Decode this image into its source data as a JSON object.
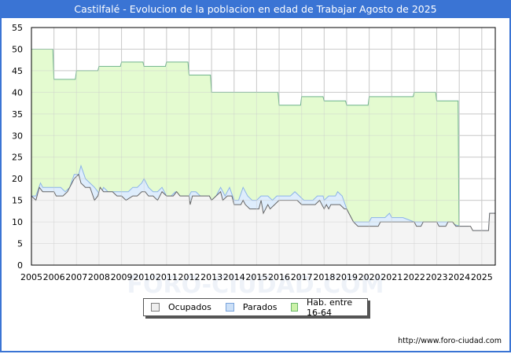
{
  "title": "Castilfalé - Evolucion de la poblacion en edad de Trabajar Agosto de 2025",
  "source": "http://www.foro-ciudad.com",
  "watermark": "FORO-CIUDAD.COM",
  "legend": [
    {
      "label": "Ocupados",
      "color": "#f2f2f2",
      "border": "#808080"
    },
    {
      "label": "Parados",
      "color": "#cce0f7",
      "border": "#7aa4dc"
    },
    {
      "label": "Hab. entre 16-64",
      "color": "#ccf2a8",
      "border": "#6db86d"
    }
  ],
  "colors": {
    "title_bar": "#3a74d4",
    "hab_fill": "#e4fbd0",
    "hab_line": "#6db38a",
    "parados_fill": "#deedfc",
    "parados_line": "#8cb4e8",
    "ocupados_fill": "#f4f4f4",
    "ocupados_line": "#666666",
    "grid": "#cccccc"
  },
  "chart_data": {
    "type": "area",
    "title": "Castilfalé - Evolucion de la poblacion en edad de Trabajar Agosto de 2025",
    "xlabel": "",
    "ylabel": "",
    "ylim": [
      0,
      55
    ],
    "xlim": [
      2005,
      2025.6
    ],
    "grid": true,
    "legend_position": "bottom",
    "x_ticks": [
      "2005",
      "2006",
      "2007",
      "2008",
      "2009",
      "2010",
      "2011",
      "2012",
      "2013",
      "2014",
      "2015",
      "2016",
      "2017",
      "2018",
      "2019",
      "2020",
      "2021",
      "2022",
      "2023",
      "2024",
      "2025"
    ],
    "y_ticks": [
      0,
      5,
      10,
      15,
      20,
      25,
      30,
      35,
      40,
      45,
      50,
      55
    ],
    "series": [
      {
        "name": "Hab. entre 16-64",
        "points": [
          [
            2005.0,
            50
          ],
          [
            2005.95,
            50
          ],
          [
            2006.0,
            43
          ],
          [
            2006.95,
            43
          ],
          [
            2007.0,
            45
          ],
          [
            2007.95,
            45
          ],
          [
            2008.0,
            46
          ],
          [
            2008.95,
            46
          ],
          [
            2009.0,
            47
          ],
          [
            2009.95,
            47
          ],
          [
            2010.0,
            46
          ],
          [
            2010.95,
            46
          ],
          [
            2011.0,
            47
          ],
          [
            2011.95,
            47
          ],
          [
            2012.0,
            44
          ],
          [
            2012.95,
            44
          ],
          [
            2013.0,
            40
          ],
          [
            2015.95,
            40
          ],
          [
            2016.0,
            37
          ],
          [
            2016.95,
            37
          ],
          [
            2017.0,
            39
          ],
          [
            2017.95,
            39
          ],
          [
            2018.0,
            38
          ],
          [
            2018.95,
            38
          ],
          [
            2019.0,
            37
          ],
          [
            2019.95,
            37
          ],
          [
            2020.0,
            39
          ],
          [
            2021.95,
            39
          ],
          [
            2022.0,
            40
          ],
          [
            2022.95,
            40
          ],
          [
            2023.0,
            38
          ],
          [
            2023.95,
            38
          ],
          [
            2024.0,
            0
          ]
        ]
      },
      {
        "name": "Parados",
        "points": [
          [
            2005.0,
            16
          ],
          [
            2005.2,
            16
          ],
          [
            2005.4,
            19
          ],
          [
            2005.5,
            18
          ],
          [
            2006.0,
            18
          ],
          [
            2006.3,
            18
          ],
          [
            2006.5,
            17
          ],
          [
            2006.7,
            18
          ],
          [
            2006.9,
            21
          ],
          [
            2007.1,
            21
          ],
          [
            2007.2,
            23
          ],
          [
            2007.4,
            20
          ],
          [
            2007.6,
            19
          ],
          [
            2007.8,
            18
          ],
          [
            2007.95,
            17
          ],
          [
            2008.05,
            16
          ],
          [
            2008.2,
            18
          ],
          [
            2008.4,
            17
          ],
          [
            2008.8,
            17
          ],
          [
            2009.0,
            17
          ],
          [
            2009.3,
            17
          ],
          [
            2009.5,
            18
          ],
          [
            2009.7,
            18
          ],
          [
            2009.9,
            19
          ],
          [
            2010.0,
            20
          ],
          [
            2010.2,
            18
          ],
          [
            2010.4,
            17
          ],
          [
            2010.6,
            17
          ],
          [
            2010.8,
            18
          ],
          [
            2011.0,
            16
          ],
          [
            2011.2,
            16
          ],
          [
            2011.4,
            17
          ],
          [
            2011.6,
            16
          ],
          [
            2012.0,
            16
          ],
          [
            2012.1,
            17
          ],
          [
            2012.3,
            17
          ],
          [
            2012.5,
            16
          ],
          [
            2012.9,
            16
          ],
          [
            2013.0,
            15
          ],
          [
            2013.2,
            16
          ],
          [
            2013.4,
            18
          ],
          [
            2013.6,
            16
          ],
          [
            2013.8,
            18
          ],
          [
            2014.0,
            15
          ],
          [
            2014.2,
            15
          ],
          [
            2014.4,
            18
          ],
          [
            2014.6,
            16
          ],
          [
            2014.8,
            15
          ],
          [
            2015.0,
            15
          ],
          [
            2015.2,
            16
          ],
          [
            2015.5,
            16
          ],
          [
            2015.7,
            15
          ],
          [
            2015.9,
            16
          ],
          [
            2016.0,
            16
          ],
          [
            2016.5,
            16
          ],
          [
            2016.7,
            17
          ],
          [
            2016.9,
            16
          ],
          [
            2017.1,
            15
          ],
          [
            2017.5,
            15
          ],
          [
            2017.7,
            16
          ],
          [
            2017.95,
            16
          ],
          [
            2018.0,
            15
          ],
          [
            2018.2,
            16
          ],
          [
            2018.5,
            16
          ],
          [
            2018.6,
            17
          ],
          [
            2018.8,
            16
          ],
          [
            2019.0,
            13
          ],
          [
            2019.1,
            12
          ],
          [
            2019.3,
            10
          ],
          [
            2019.6,
            10
          ],
          [
            2020.0,
            10
          ],
          [
            2020.1,
            11
          ],
          [
            2020.5,
            11
          ],
          [
            2020.7,
            11
          ],
          [
            2020.9,
            12
          ],
          [
            2021.0,
            11
          ],
          [
            2021.3,
            11
          ],
          [
            2021.5,
            11
          ],
          [
            2022.0,
            10
          ],
          [
            2022.5,
            10
          ],
          [
            2023.0,
            10
          ],
          [
            2023.5,
            10
          ],
          [
            2024.0,
            9
          ],
          [
            2024.4,
            9
          ],
          [
            2024.5,
            8
          ],
          [
            2025.3,
            8
          ],
          [
            2025.35,
            12
          ],
          [
            2025.6,
            12
          ]
        ]
      },
      {
        "name": "Ocupados",
        "points": [
          [
            2005.0,
            16
          ],
          [
            2005.2,
            15
          ],
          [
            2005.35,
            18
          ],
          [
            2005.5,
            17
          ],
          [
            2006.0,
            17
          ],
          [
            2006.1,
            16
          ],
          [
            2006.4,
            16
          ],
          [
            2006.6,
            17
          ],
          [
            2006.9,
            20
          ],
          [
            2007.1,
            21
          ],
          [
            2007.2,
            19
          ],
          [
            2007.4,
            18
          ],
          [
            2007.6,
            18
          ],
          [
            2007.8,
            15
          ],
          [
            2007.95,
            16
          ],
          [
            2008.05,
            18
          ],
          [
            2008.2,
            17
          ],
          [
            2008.6,
            17
          ],
          [
            2008.8,
            16
          ],
          [
            2009.0,
            16
          ],
          [
            2009.2,
            15
          ],
          [
            2009.5,
            16
          ],
          [
            2009.7,
            16
          ],
          [
            2009.9,
            17
          ],
          [
            2010.05,
            17
          ],
          [
            2010.2,
            16
          ],
          [
            2010.4,
            16
          ],
          [
            2010.6,
            15
          ],
          [
            2010.8,
            17
          ],
          [
            2011.0,
            16
          ],
          [
            2011.3,
            16
          ],
          [
            2011.45,
            17
          ],
          [
            2011.6,
            16
          ],
          [
            2012.0,
            16
          ],
          [
            2012.05,
            14
          ],
          [
            2012.15,
            16
          ],
          [
            2012.6,
            16
          ],
          [
            2012.9,
            16
          ],
          [
            2013.0,
            15
          ],
          [
            2013.4,
            17
          ],
          [
            2013.5,
            15
          ],
          [
            2013.7,
            16
          ],
          [
            2013.9,
            16
          ],
          [
            2014.0,
            14
          ],
          [
            2014.3,
            14
          ],
          [
            2014.4,
            15
          ],
          [
            2014.5,
            14
          ],
          [
            2014.7,
            13
          ],
          [
            2015.1,
            13
          ],
          [
            2015.2,
            15
          ],
          [
            2015.3,
            12
          ],
          [
            2015.5,
            14
          ],
          [
            2015.6,
            13
          ],
          [
            2015.8,
            14
          ],
          [
            2016.0,
            15
          ],
          [
            2016.5,
            15
          ],
          [
            2016.8,
            15
          ],
          [
            2017.0,
            14
          ],
          [
            2017.3,
            14
          ],
          [
            2017.6,
            14
          ],
          [
            2017.8,
            15
          ],
          [
            2018.0,
            13
          ],
          [
            2018.1,
            14
          ],
          [
            2018.2,
            13
          ],
          [
            2018.3,
            14
          ],
          [
            2018.5,
            14
          ],
          [
            2018.7,
            14
          ],
          [
            2018.9,
            13
          ],
          [
            2019.0,
            13
          ],
          [
            2019.1,
            12
          ],
          [
            2019.3,
            10
          ],
          [
            2019.5,
            9
          ],
          [
            2020.0,
            9
          ],
          [
            2020.4,
            9
          ],
          [
            2020.5,
            10
          ],
          [
            2021.0,
            10
          ],
          [
            2021.5,
            10
          ],
          [
            2021.6,
            10
          ],
          [
            2022.0,
            10
          ],
          [
            2022.1,
            9
          ],
          [
            2022.3,
            9
          ],
          [
            2022.4,
            10
          ],
          [
            2022.6,
            10
          ],
          [
            2022.9,
            10
          ],
          [
            2023.0,
            10
          ],
          [
            2023.1,
            9
          ],
          [
            2023.4,
            9
          ],
          [
            2023.5,
            10
          ],
          [
            2023.7,
            10
          ],
          [
            2023.85,
            9
          ],
          [
            2024.0,
            9
          ],
          [
            2024.5,
            9
          ],
          [
            2024.6,
            8
          ],
          [
            2025.3,
            8
          ],
          [
            2025.35,
            12
          ],
          [
            2025.6,
            12
          ]
        ]
      }
    ]
  }
}
